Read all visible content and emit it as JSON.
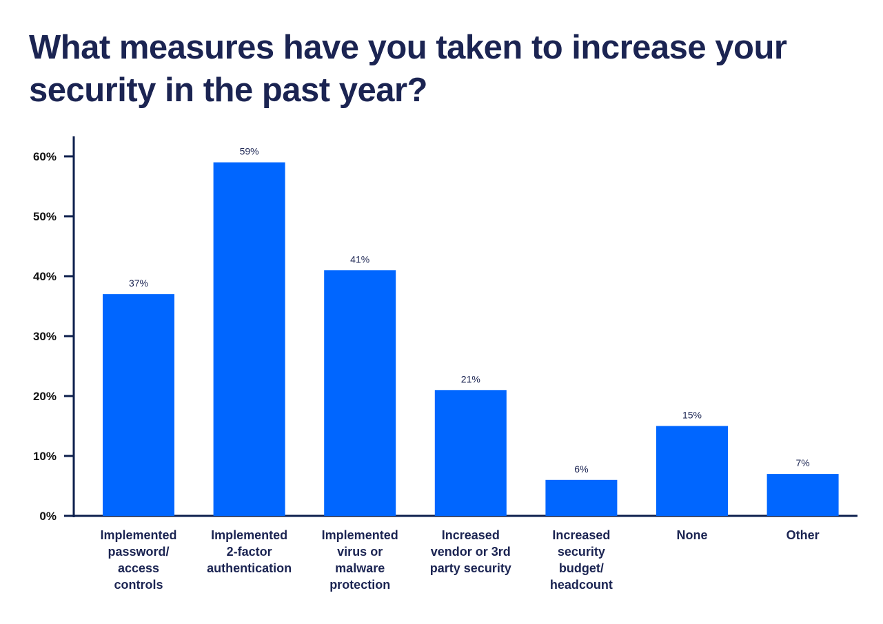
{
  "chart_data": {
    "type": "bar",
    "title": "What measures have you taken to increase your security in the past year?",
    "categories": [
      [
        "Implemented",
        "password/",
        "access",
        "controls"
      ],
      [
        "Implemented",
        "2-factor",
        "authentication"
      ],
      [
        "Implemented",
        "virus or",
        "malware",
        "protection"
      ],
      [
        "Increased",
        "vendor or 3rd",
        "party security"
      ],
      [
        "Increased",
        "security",
        "budget/",
        "headcount"
      ],
      [
        "None"
      ],
      [
        "Other"
      ]
    ],
    "values": [
      37,
      59,
      41,
      21,
      6,
      15,
      7
    ],
    "data_labels": [
      "37%",
      "59%",
      "41%",
      "21%",
      "6%",
      "15%",
      "7%"
    ],
    "y_ticks": [
      "0%",
      "10%",
      "20%",
      "30%",
      "40%",
      "50%",
      "60%"
    ],
    "ylim": [
      0,
      60
    ],
    "xlabel": "",
    "ylabel": "",
    "grid": false,
    "colors": {
      "bar": "#0066ff",
      "axis": "#0d1f4d",
      "title": "#1b2452"
    }
  }
}
